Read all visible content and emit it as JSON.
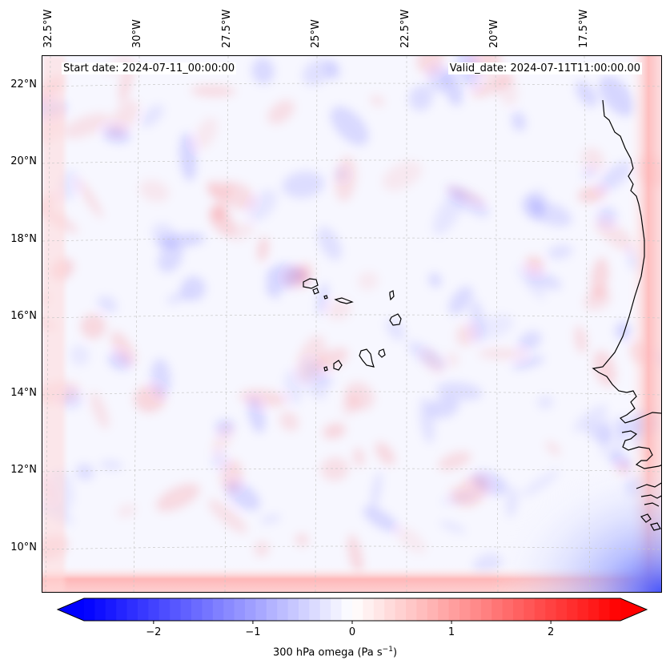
{
  "map": {
    "start_date_text": "Start date: 2024-07-11_00:00:00",
    "valid_date_text": "Valid_date: 2024-07-11T11:00:00.00",
    "longitude_ticks": [
      "32.5°W",
      "30°W",
      "27.5°W",
      "25°W",
      "22.5°W",
      "20°W",
      "17.5°W"
    ],
    "latitude_ticks": [
      "22°N",
      "20°N",
      "18°N",
      "16°N",
      "14°N",
      "12°N",
      "10°N"
    ],
    "field": "300 hPa omega",
    "colors": {
      "negative": "#0000ff",
      "positive": "#ff0000",
      "neutral": "#ffffff",
      "coastline": "#000000"
    }
  },
  "colorbar": {
    "min": -2.7,
    "max": 2.7,
    "ticks": [
      "−2",
      "−1",
      "0",
      "1",
      "2"
    ],
    "tick_values": [
      -2,
      -1,
      0,
      1,
      2
    ],
    "label_text": "300 hPa omega (Pa s",
    "label_exponent": "−1",
    "label_close": ")"
  }
}
